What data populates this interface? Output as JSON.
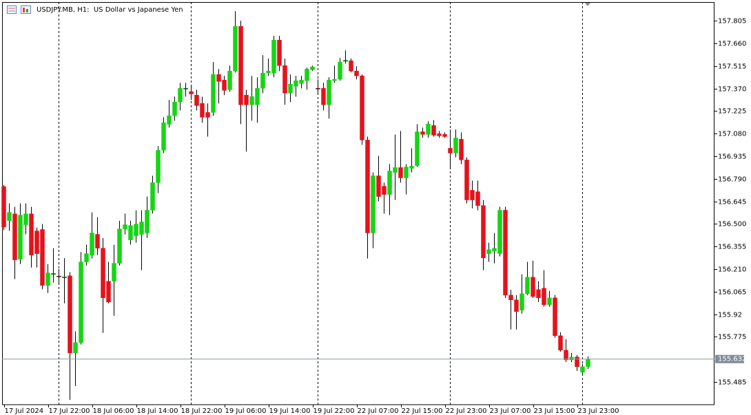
{
  "chart_data": {
    "type": "candlestick",
    "title": "USDJPY.MB, H1:  US Dollar vs Japanese Yen",
    "categories": [
      "17 Jul 2024",
      null,
      null,
      null,
      null,
      null,
      null,
      null,
      "17 Jul 22:00",
      null,
      null,
      null,
      null,
      null,
      null,
      null,
      "18 Jul 06:00",
      null,
      null,
      null,
      null,
      null,
      null,
      null,
      "18 Jul 14:00",
      null,
      null,
      null,
      null,
      null,
      null,
      null,
      "18 Jul 22:00",
      null,
      null,
      null,
      null,
      null,
      null,
      null,
      "19 Jul 06:00",
      null,
      null,
      null,
      null,
      null,
      null,
      null,
      "19 Jul 14:00",
      null,
      null,
      null,
      null,
      null,
      null,
      null,
      "19 Jul 22:00",
      null,
      null,
      null,
      null,
      null,
      null,
      null,
      "22 Jul 07:00",
      null,
      null,
      null,
      null,
      null,
      null,
      null,
      "22 Jul 15:00",
      null,
      null,
      null,
      null,
      null,
      null,
      null,
      "22 Jul 23:00",
      null,
      null,
      null,
      null,
      null,
      null,
      null,
      "23 Jul 07:00",
      null,
      null,
      null,
      null,
      null,
      null,
      null,
      "23 Jul 15:00",
      null,
      null,
      null,
      null,
      null,
      null,
      null,
      "23 Jul 23:00",
      null,
      null
    ],
    "open": [
      156.74,
      156.521,
      156.565,
      156.273,
      156.495,
      156.565,
      156.455,
      156.464,
      156.105,
      156.176,
      156.165,
      156.16,
      156.167,
      155.671,
      155.738,
      156.256,
      156.3,
      156.433,
      156.344,
      156.132,
      156.132,
      156.247,
      156.468,
      156.397,
      156.424,
      156.433,
      156.442,
      156.588,
      156.765,
      156.973,
      157.14,
      157.195,
      157.283,
      157.368,
      157.35,
      157.327,
      157.274,
      157.216,
      157.216,
      157.46,
      157.424,
      157.362,
      157.482,
      157.769,
      157.327,
      157.265,
      157.265,
      157.371,
      157.469,
      157.469,
      157.681,
      157.517,
      157.34,
      157.384,
      157.402,
      157.42,
      157.49,
      157.371,
      157.371,
      157.265,
      157.42,
      157.429,
      157.545,
      157.548,
      157.482,
      157.451,
      157.039,
      156.442,
      156.809,
      156.742,
      156.689,
      156.831,
      156.862,
      156.796,
      156.857,
      156.875,
      157.092,
      157.075,
      157.132,
      157.079,
      157.075,
      156.986,
      156.955,
      157.044,
      156.911,
      156.716,
      156.707,
      156.618,
      156.309,
      156.326,
      156.309,
      156.588,
      156.043,
      156.012,
      155.946,
      156.052,
      156.158,
      156.078,
      156.087,
      155.981,
      156.025,
      155.782,
      155.689,
      155.627,
      155.645,
      155.547,
      155.583
    ],
    "high": [
      156.75,
      156.632,
      156.61,
      156.632,
      156.632,
      156.61,
      156.477,
      156.5,
      156.242,
      156.344,
      156.21,
      156.28,
      156.19,
      155.81,
      156.32,
      156.366,
      156.574,
      156.543,
      156.41,
      156.256,
      156.366,
      156.52,
      156.566,
      156.52,
      156.588,
      156.588,
      156.676,
      156.81,
      157.0,
      157.185,
      157.296,
      157.318,
      157.406,
      157.406,
      157.384,
      157.362,
      157.318,
      157.274,
      157.54,
      157.495,
      157.451,
      157.517,
      157.867,
      157.805,
      157.362,
      157.451,
      157.442,
      157.584,
      157.562,
      157.708,
      157.708,
      157.562,
      157.46,
      157.451,
      157.451,
      157.504,
      157.517,
      157.429,
      157.406,
      157.442,
      157.517,
      157.566,
      157.615,
      157.562,
      157.513,
      157.46,
      157.061,
      156.831,
      156.937,
      156.765,
      156.884,
      157.074,
      157.097,
      156.884,
      156.986,
      157.141,
      157.119,
      157.159,
      157.167,
      157.097,
      157.088,
      157.106,
      157.106,
      157.088,
      156.928,
      156.778,
      156.778,
      156.654,
      156.379,
      156.442,
      156.61,
      156.61,
      156.078,
      156.043,
      156.176,
      156.256,
      156.264,
      156.132,
      156.203,
      156.07,
      156.043,
      155.804,
      155.76,
      155.671,
      155.658,
      155.6,
      155.649
    ],
    "low": [
      156.46,
      156.455,
      156.145,
      156.242,
      156.433,
      156.22,
      156.22,
      156.08,
      156.056,
      156.123,
      156.12,
      155.99,
      155.37,
      155.459,
      155.725,
      156.233,
      156.278,
      156.3,
      155.8,
      155.99,
      155.91,
      156.233,
      156.433,
      156.366,
      156.38,
      156.203,
      156.41,
      156.566,
      156.698,
      156.955,
      157.119,
      157.163,
      157.229,
      157.318,
      157.296,
      157.229,
      157.15,
      157.061,
      157.194,
      157.274,
      157.327,
      157.349,
      157.473,
      157.141,
      156.964,
      157.163,
      157.15,
      157.34,
      157.451,
      157.442,
      157.482,
      157.265,
      157.283,
      157.318,
      157.371,
      157.362,
      157.482,
      157.34,
      157.229,
      157.176,
      157.406,
      157.42,
      157.53,
      157.473,
      157.429,
      157.008,
      156.278,
      156.344,
      156.645,
      156.566,
      156.557,
      156.654,
      156.765,
      156.689,
      156.831,
      156.866,
      157.053,
      157.053,
      157.061,
      157.053,
      157.053,
      156.853,
      156.928,
      156.884,
      156.632,
      156.6,
      156.588,
      156.203,
      156.256,
      156.247,
      156.291,
      156.025,
      155.822,
      155.822,
      155.924,
      156.043,
      156.025,
      155.998,
      155.968,
      155.968,
      155.769,
      155.68,
      155.613,
      155.613,
      155.556,
      155.525,
      155.569
    ],
    "close": [
      156.48,
      156.574,
      156.269,
      156.557,
      156.565,
      156.3,
      156.309,
      156.105,
      156.185,
      156.181,
      156.16,
      156.16,
      155.671,
      155.738,
      156.256,
      156.309,
      156.442,
      156.344,
      156.025,
      155.998,
      156.247,
      156.468,
      156.495,
      156.49,
      156.499,
      156.513,
      156.588,
      156.765,
      156.973,
      157.15,
      157.195,
      157.283,
      157.371,
      157.371,
      157.335,
      157.26,
      157.185,
      157.185,
      157.46,
      157.415,
      157.358,
      157.482,
      157.769,
      157.265,
      157.265,
      157.318,
      157.371,
      157.469,
      157.482,
      157.681,
      157.517,
      157.34,
      157.398,
      157.42,
      157.424,
      157.495,
      157.509,
      157.367,
      157.265,
      157.424,
      157.429,
      157.54,
      157.55,
      157.482,
      157.451,
      157.039,
      156.442,
      156.809,
      156.676,
      156.689,
      156.84,
      156.862,
      156.796,
      156.866,
      156.871,
      157.092,
      157.075,
      157.141,
      157.07,
      157.066,
      157.061,
      156.955,
      157.052,
      156.911,
      156.654,
      156.654,
      156.618,
      156.282,
      156.335,
      156.344,
      156.588,
      156.043,
      156.012,
      155.937,
      156.052,
      156.158,
      156.034,
      156.025,
      155.981,
      156.025,
      155.782,
      155.689,
      155.627,
      155.645,
      155.583,
      155.583,
      155.632
    ],
    "up_color": "#14d614",
    "down_color": "#e5121c",
    "last_price": 155.632,
    "ylim": [
      155.339,
      157.925
    ],
    "yticks": [
      157.805,
      {
        "value": 157.66,
        "label": "157.660"
      },
      157.515,
      {
        "value": 157.37,
        "label": "157.370"
      },
      157.225,
      {
        "value": 157.08,
        "label": "157.080"
      },
      156.935,
      {
        "value": 156.79,
        "label": "156.790"
      },
      156.645,
      {
        "value": 156.5,
        "label": "156.500"
      },
      156.355,
      {
        "value": 156.21,
        "label": "156.210"
      },
      156.065,
      155.92,
      155.775,
      155.485
    ],
    "grid": false
  }
}
